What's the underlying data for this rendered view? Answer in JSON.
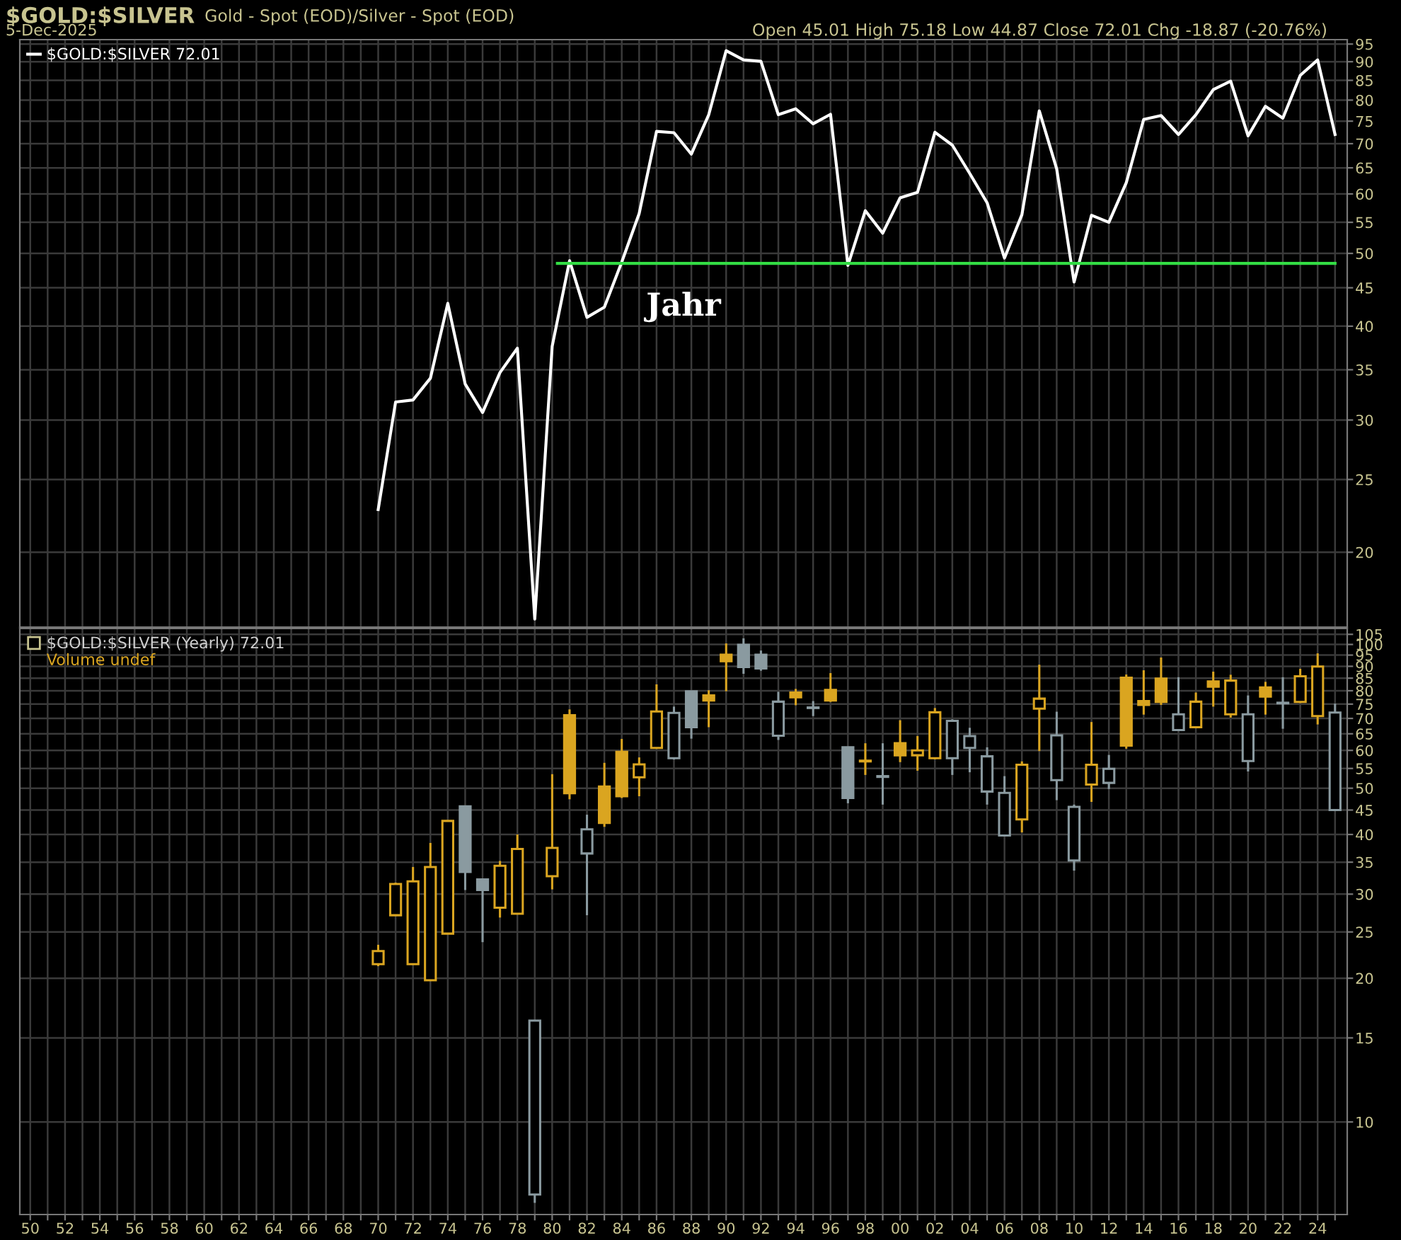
{
  "chart_data": [
    {
      "type": "line",
      "title": "$GOLD:$SILVER",
      "subtitle": "Gold - Spot (EOD)/Silver - Spot (EOD)",
      "annotations": [
        "5-Dec-2025",
        "Open 45.01 High 75.18 Low 44.87 Close 72.01 Chg -18.87 (-20.76%)",
        "Jahr"
      ],
      "series": [
        {
          "name": "$GOLD:$SILVER 72.01",
          "color": "#ffffff",
          "x": [
            1970,
            1971,
            1972,
            1973,
            1974,
            1975,
            1976,
            1977,
            1978,
            1979,
            1980,
            1981,
            1982,
            1983,
            1984,
            1985,
            1986,
            1987,
            1988,
            1989,
            1990,
            1991,
            1992,
            1993,
            1994,
            1995,
            1996,
            1997,
            1998,
            1999,
            2000,
            2001,
            2002,
            2003,
            2004,
            2005,
            2006,
            2007,
            2008,
            2009,
            2010,
            2011,
            2012,
            2013,
            2014,
            2015,
            2016,
            2017,
            2018,
            2019,
            2020,
            2021,
            2022,
            2023,
            2024,
            2025
          ],
          "values": [
            22.8,
            31.7,
            31.9,
            34.1,
            42.9,
            33.5,
            30.7,
            34.7,
            37.4,
            16.3,
            37.6,
            48.9,
            41.1,
            42.4,
            48.7,
            56.5,
            72.7,
            72.4,
            67.8,
            76.5,
            93.1,
            90.5,
            90.1,
            76.5,
            77.9,
            74.4,
            76.6,
            48.2,
            57.0,
            53.2,
            59.3,
            60.3,
            72.5,
            69.7,
            63.9,
            58.4,
            49.3,
            56.3,
            77.4,
            64.8,
            45.8,
            56.2,
            55.0,
            62.1,
            75.4,
            76.3,
            72.0,
            76.5,
            82.6,
            84.8,
            71.7,
            78.5,
            75.7,
            86.3,
            90.5,
            72.01
          ]
        },
        {
          "color": "#33dd44",
          "x": [
            1980.3,
            2025
          ],
          "values": [
            48.5,
            48.5
          ]
        }
      ],
      "xlim": [
        1949.4,
        2025.7
      ],
      "ylim": [
        15.9,
        96.3
      ],
      "log": true,
      "grid": true,
      "legend": "top left",
      "tick_labels": "y",
      "yticks": [
        20,
        25,
        30,
        35,
        40,
        45,
        50,
        55,
        60,
        65,
        70,
        75,
        80,
        85,
        90,
        95
      ],
      "xticks": [
        1950,
        1951,
        1952,
        1953,
        1954,
        1955,
        1956,
        1957,
        1958,
        1959,
        1960,
        1961,
        1962,
        1963,
        1964,
        1965,
        1966,
        1967,
        1968,
        1969,
        1970,
        1971,
        1972,
        1973,
        1974,
        1975,
        1976,
        1977,
        1978,
        1979,
        1980,
        1981,
        1982,
        1983,
        1984,
        1985,
        1986,
        1987,
        1988,
        1989,
        1990,
        1991,
        1992,
        1993,
        1994,
        1995,
        1996,
        1997,
        1998,
        1999,
        2000,
        2001,
        2002,
        2003,
        2004,
        2005,
        2006,
        2007,
        2008,
        2009,
        2010,
        2011,
        2012,
        2013,
        2014,
        2015,
        2016,
        2017,
        2018,
        2019,
        2020,
        2021,
        2022,
        2023,
        2024,
        2025
      ]
    },
    {
      "type": "candlestick",
      "annotations": [
        "Volume undef"
      ],
      "series": [
        {
          "name": "$GOLD:$SILVER (Yearly) 72.01",
          "x": [
            1970,
            1971,
            1972,
            1973,
            1974,
            1975,
            1976,
            1977,
            1978,
            1979,
            1980,
            1981,
            1982,
            1983,
            1984,
            1985,
            1986,
            1987,
            1988,
            1989,
            1990,
            1991,
            1992,
            1993,
            1994,
            1995,
            1996,
            1997,
            1998,
            1999,
            2000,
            2001,
            2002,
            2003,
            2004,
            2005,
            2006,
            2007,
            2008,
            2009,
            2010,
            2011,
            2012,
            2013,
            2014,
            2015,
            2016,
            2017,
            2018,
            2019,
            2020,
            2021,
            2022,
            2023,
            2024,
            2025
          ],
          "ohlc": [
            [
              21.4,
              23.5,
              21.2,
              22.8
            ],
            [
              27.1,
              31.7,
              27.1,
              31.5
            ],
            [
              21.4,
              34.2,
              21.4,
              31.9
            ],
            [
              19.8,
              38.4,
              19.8,
              34.2
            ],
            [
              24.8,
              42.7,
              24.8,
              42.7
            ],
            [
              45.8,
              45.8,
              30.6,
              33.4
            ],
            [
              32.2,
              32.2,
              23.8,
              30.6
            ],
            [
              28.1,
              35.2,
              26.8,
              34.4
            ],
            [
              27.3,
              40.0,
              27.3,
              37.3
            ],
            [
              7.05,
              16.3,
              6.77,
              16.3
            ],
            [
              32.7,
              53.5,
              30.7,
              37.5
            ],
            [
              71.1,
              73.1,
              47.4,
              48.8
            ],
            [
              36.5,
              44.0,
              27.1,
              41.0
            ],
            [
              50.4,
              56.5,
              41.5,
              42.3
            ],
            [
              59.6,
              63.4,
              47.7,
              48.1
            ],
            [
              52.7,
              58.0,
              48.1,
              56.1
            ],
            [
              60.7,
              82.5,
              60.7,
              72.4
            ],
            [
              57.8,
              74.1,
              57.4,
              71.9
            ],
            [
              79.8,
              79.8,
              63.5,
              67.1
            ],
            [
              78.2,
              80.2,
              67.1,
              76.3
            ],
            [
              95.2,
              100.5,
              79.8,
              92.2
            ],
            [
              99.8,
              103.0,
              86.8,
              89.7
            ],
            [
              95.2,
              97.1,
              88.1,
              89.1
            ],
            [
              64.4,
              79.6,
              63.1,
              75.9
            ],
            [
              79.3,
              80.7,
              74.6,
              77.5
            ],
            [
              73.8,
              76.1,
              70.8,
              73.6
            ],
            [
              80.3,
              87.1,
              75.8,
              76.3
            ],
            [
              60.9,
              60.9,
              46.5,
              47.7
            ],
            [
              56.9,
              62.1,
              53.3,
              57.1
            ],
            [
              53.0,
              62.1,
              46.2,
              52.8
            ],
            [
              62.1,
              69.4,
              56.7,
              58.6
            ],
            [
              58.6,
              64.3,
              54.4,
              60.0
            ],
            [
              57.8,
              73.6,
              57.5,
              72.1
            ],
            [
              57.8,
              69.7,
              53.3,
              69.2
            ],
            [
              60.7,
              66.9,
              54.0,
              64.3
            ],
            [
              49.2,
              60.9,
              46.2,
              58.3
            ],
            [
              39.8,
              53.0,
              39.8,
              48.9
            ],
            [
              43.0,
              56.9,
              40.4,
              56.0
            ],
            [
              73.4,
              90.7,
              59.8,
              77.0
            ],
            [
              52.0,
              72.3,
              47.2,
              64.5
            ],
            [
              35.3,
              46.2,
              33.6,
              45.7
            ],
            [
              50.9,
              68.8,
              46.8,
              56.0
            ],
            [
              51.3,
              58.7,
              49.8,
              54.9
            ],
            [
              85.2,
              86.5,
              60.5,
              61.4
            ],
            [
              76.1,
              88.3,
              71.3,
              74.7
            ],
            [
              84.8,
              93.9,
              74.7,
              75.8
            ],
            [
              66.2,
              85.4,
              66.2,
              71.4
            ],
            [
              67.1,
              79.3,
              66.8,
              75.9
            ],
            [
              83.7,
              87.7,
              74.1,
              81.6
            ],
            [
              71.4,
              86.4,
              70.3,
              84.0
            ],
            [
              57.0,
              78.2,
              54.2,
              71.4
            ],
            [
              81.3,
              83.5,
              71.3,
              77.8
            ],
            [
              75.5,
              85.4,
              66.6,
              75.3
            ],
            [
              75.8,
              88.9,
              75.4,
              85.8
            ],
            [
              70.8,
              95.8,
              68.0,
              89.9
            ],
            [
              45.01,
              75.18,
              44.87,
              72.01
            ]
          ],
          "colors": [
            "#daa520",
            "#daa520",
            "#daa520",
            "#daa520",
            "#daa520",
            "#8a9aa0",
            "#8a9aa0",
            "#daa520",
            "#daa520",
            "#8a9aa0",
            "#daa520",
            "#daa520",
            "#8a9aa0",
            "#daa520",
            "#daa520",
            "#daa520",
            "#daa520",
            "#8a9aa0",
            "#8a9aa0",
            "#daa520",
            "#daa520",
            "#8a9aa0",
            "#8a9aa0",
            "#8a9aa0",
            "#daa520",
            "#8a9aa0",
            "#daa520",
            "#8a9aa0",
            "#daa520",
            "#8a9aa0",
            "#daa520",
            "#daa520",
            "#daa520",
            "#8a9aa0",
            "#8a9aa0",
            "#8a9aa0",
            "#8a9aa0",
            "#daa520",
            "#daa520",
            "#8a9aa0",
            "#8a9aa0",
            "#daa520",
            "#8a9aa0",
            "#daa520",
            "#daa520",
            "#daa520",
            "#8a9aa0",
            "#daa520",
            "#daa520",
            "#daa520",
            "#8a9aa0",
            "#daa520",
            "#8a9aa0",
            "#daa520",
            "#daa520",
            "#8a9aa0"
          ]
        }
      ],
      "xlim": [
        1949.4,
        2025.7
      ],
      "ylim": [
        6.4,
        108
      ],
      "log": true,
      "grid": true,
      "legend": "top left",
      "yticks": [
        10,
        15,
        20,
        25,
        30,
        35,
        40,
        45,
        50,
        55,
        60,
        65,
        70,
        75,
        80,
        85,
        90,
        95,
        100,
        105
      ],
      "xticks": [
        {
          "value": 1950,
          "label": "50"
        },
        {
          "value": 1951,
          "label": null
        },
        {
          "value": 1952,
          "label": "52"
        },
        {
          "value": 1953,
          "label": null
        },
        {
          "value": 1954,
          "label": "54"
        },
        {
          "value": 1955,
          "label": null
        },
        {
          "value": 1956,
          "label": "56"
        },
        {
          "value": 1957,
          "label": null
        },
        {
          "value": 1958,
          "label": "58"
        },
        {
          "value": 1959,
          "label": null
        },
        {
          "value": 1960,
          "label": "60"
        },
        {
          "value": 1961,
          "label": null
        },
        {
          "value": 1962,
          "label": "62"
        },
        {
          "value": 1963,
          "label": null
        },
        {
          "value": 1964,
          "label": "64"
        },
        {
          "value": 1965,
          "label": null
        },
        {
          "value": 1966,
          "label": "66"
        },
        {
          "value": 1967,
          "label": null
        },
        {
          "value": 1968,
          "label": "68"
        },
        {
          "value": 1969,
          "label": null
        },
        {
          "value": 1970,
          "label": "70"
        },
        {
          "value": 1971,
          "label": null
        },
        {
          "value": 1972,
          "label": "72"
        },
        {
          "value": 1973,
          "label": null
        },
        {
          "value": 1974,
          "label": "74"
        },
        {
          "value": 1975,
          "label": null
        },
        {
          "value": 1976,
          "label": "76"
        },
        {
          "value": 1977,
          "label": null
        },
        {
          "value": 1978,
          "label": "78"
        },
        {
          "value": 1979,
          "label": null
        },
        {
          "value": 1980,
          "label": "80"
        },
        {
          "value": 1981,
          "label": null
        },
        {
          "value": 1982,
          "label": "82"
        },
        {
          "value": 1983,
          "label": null
        },
        {
          "value": 1984,
          "label": "84"
        },
        {
          "value": 1985,
          "label": null
        },
        {
          "value": 1986,
          "label": "86"
        },
        {
          "value": 1987,
          "label": null
        },
        {
          "value": 1988,
          "label": "88"
        },
        {
          "value": 1989,
          "label": null
        },
        {
          "value": 1990,
          "label": "90"
        },
        {
          "value": 1991,
          "label": null
        },
        {
          "value": 1992,
          "label": "92"
        },
        {
          "value": 1993,
          "label": null
        },
        {
          "value": 1994,
          "label": "94"
        },
        {
          "value": 1995,
          "label": null
        },
        {
          "value": 1996,
          "label": "96"
        },
        {
          "value": 1997,
          "label": null
        },
        {
          "value": 1998,
          "label": "98"
        },
        {
          "value": 1999,
          "label": null
        },
        {
          "value": 2000,
          "label": "00"
        },
        {
          "value": 2001,
          "label": null
        },
        {
          "value": 2002,
          "label": "02"
        },
        {
          "value": 2003,
          "label": null
        },
        {
          "value": 2004,
          "label": "04"
        },
        {
          "value": 2005,
          "label": null
        },
        {
          "value": 2006,
          "label": "06"
        },
        {
          "value": 2007,
          "label": null
        },
        {
          "value": 2008,
          "label": "08"
        },
        {
          "value": 2009,
          "label": null
        },
        {
          "value": 2010,
          "label": "10"
        },
        {
          "value": 2011,
          "label": null
        },
        {
          "value": 2012,
          "label": "12"
        },
        {
          "value": 2013,
          "label": null
        },
        {
          "value": 2014,
          "label": "14"
        },
        {
          "value": 2015,
          "label": null
        },
        {
          "value": 2016,
          "label": "16"
        },
        {
          "value": 2017,
          "label": null
        },
        {
          "value": 2018,
          "label": "18"
        },
        {
          "value": 2019,
          "label": null
        },
        {
          "value": 2020,
          "label": "20"
        },
        {
          "value": 2021,
          "label": null
        },
        {
          "value": 2022,
          "label": "22"
        },
        {
          "value": 2023,
          "label": null
        },
        {
          "value": 2024,
          "label": "24"
        },
        {
          "value": 2025,
          "label": null
        }
      ]
    }
  ]
}
